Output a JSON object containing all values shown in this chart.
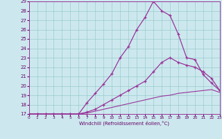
{
  "bg_color": "#cce8ee",
  "line_color": "#993399",
  "grid_color": "#99cccc",
  "xlabel": "Windchill (Refroidissement éolien,°C)",
  "xlim": [
    0,
    23
  ],
  "ylim": [
    17,
    29
  ],
  "yticks": [
    17,
    18,
    19,
    20,
    21,
    22,
    23,
    24,
    25,
    26,
    27,
    28,
    29
  ],
  "xticks": [
    0,
    1,
    2,
    3,
    4,
    5,
    6,
    7,
    8,
    9,
    10,
    11,
    12,
    13,
    14,
    15,
    16,
    17,
    18,
    19,
    20,
    21,
    22,
    23
  ],
  "line1_x": [
    0,
    1,
    2,
    3,
    4,
    5,
    6,
    7,
    8,
    9,
    10,
    11,
    12,
    13,
    14,
    15,
    16,
    17,
    18,
    19,
    20,
    21,
    22,
    23
  ],
  "line1_y": [
    17,
    17,
    17,
    17,
    17,
    17,
    17,
    18.2,
    19.2,
    20.2,
    21.3,
    23.0,
    24.2,
    26.0,
    27.3,
    29.0,
    28.0,
    27.5,
    25.5,
    23.0,
    22.8,
    21.2,
    20.3,
    19.5
  ],
  "line2_x": [
    0,
    1,
    2,
    3,
    4,
    5,
    6,
    7,
    8,
    9,
    10,
    11,
    12,
    13,
    14,
    15,
    16,
    17,
    18,
    19,
    20,
    21,
    22,
    23
  ],
  "line2_y": [
    17,
    17,
    17,
    17,
    17,
    17,
    17,
    17.2,
    17.5,
    18.0,
    18.5,
    19.0,
    19.5,
    20.0,
    20.5,
    21.5,
    22.5,
    23.0,
    22.5,
    22.2,
    22.0,
    21.5,
    20.8,
    19.5
  ],
  "line3_x": [
    0,
    1,
    2,
    3,
    4,
    5,
    6,
    7,
    8,
    9,
    10,
    11,
    12,
    13,
    14,
    15,
    16,
    17,
    18,
    19,
    20,
    21,
    22,
    23
  ],
  "line3_y": [
    17,
    17,
    17,
    17,
    17,
    17,
    17,
    17.1,
    17.3,
    17.5,
    17.7,
    17.9,
    18.1,
    18.3,
    18.5,
    18.7,
    18.9,
    19.0,
    19.2,
    19.3,
    19.4,
    19.5,
    19.6,
    19.3
  ]
}
